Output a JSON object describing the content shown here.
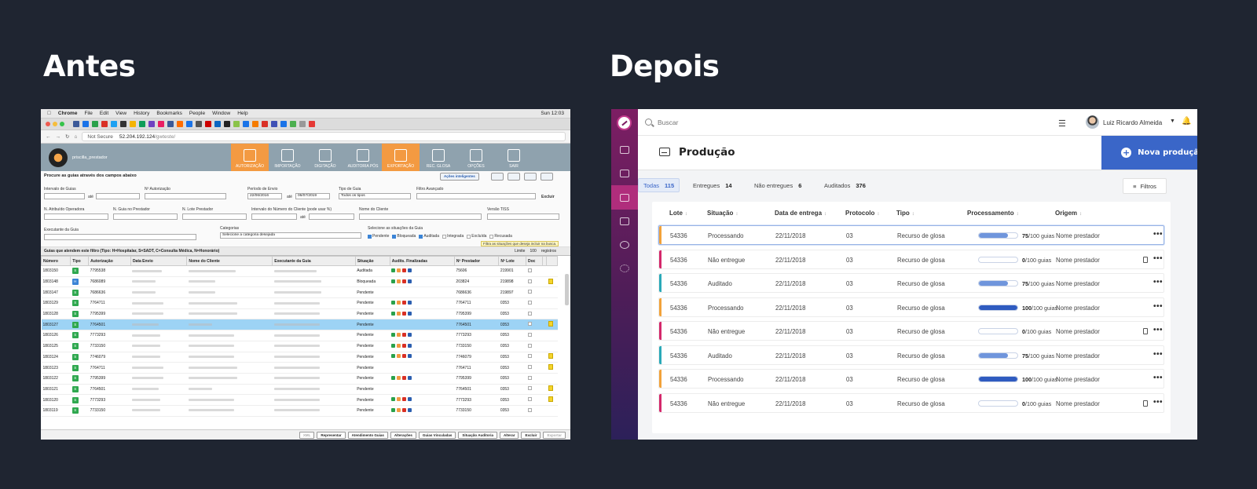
{
  "headings": {
    "before": "Antes",
    "after": "Depois"
  },
  "old": {
    "mac_menu": [
      "Chrome",
      "File",
      "Edit",
      "View",
      "History",
      "Bookmarks",
      "People",
      "Window",
      "Help"
    ],
    "clock": "Sun 12:03",
    "url": {
      "security": "Not Secure",
      "host": "52.204.192.124",
      "path": "/gwteste/"
    },
    "username": "priscilla_prestador",
    "modules": [
      {
        "label": "AUTORIZAÇÃO",
        "active": true
      },
      {
        "label": "IMPORTAÇÃO",
        "active": false
      },
      {
        "label": "DIGITAÇÃO",
        "active": false
      },
      {
        "label": "AUDITORIA PÓS",
        "active": false
      },
      {
        "label": "EXPORTAÇÃO",
        "active": true
      },
      {
        "label": "REC. GLOSA",
        "active": false
      },
      {
        "label": "OPÇÕES",
        "active": false
      },
      {
        "label": "SAIR",
        "active": false
      }
    ],
    "filters": {
      "title": "Procure as guias através dos campos abaixo",
      "acoes": "Ações inteligentes",
      "intervalo_guias": "Intervalo de Guias",
      "ate": "até",
      "n_autorizacao": "Nº Autorização",
      "periodo_envio": "Período de Envio",
      "date_from": "22/06/2016",
      "date_to": "06/07/2019",
      "tipo_guia": "Tipo de Guia",
      "tipo_guia_value": "Todos os tipos",
      "filtro_avancado": "Filtro Avançado",
      "excluir": "Excluir",
      "n_atribuido": "N. Atribuído Operadora",
      "n_guia_prestador": "N. Guia no Prestador",
      "n_lote_prestador": "N. Lote Prestador",
      "intervalo_cliente": "Intervalo do Número do Cliente (pode usar %)",
      "nome_cliente": "Nome do Cliente",
      "versao_tiss": "Versão TISS",
      "categorias": "Categorias",
      "categorias_value": "Selecione a categoria desejada",
      "executante": "Executante da Guia",
      "situacoes_label": "Selecione as situações da Guia",
      "situacoes": [
        "Pendente",
        "Bloqueada",
        "Auditada",
        "Integrada",
        "Excluída",
        "Recusada"
      ],
      "limite": "Limite",
      "limite_value": "100",
      "registros": "registros",
      "tooltip": "Filtra as situações que deseja incluir na busca."
    },
    "grid_title": "Guias que atendem este filtro (Tipo: H=Hospitalar, S=SADT, C=Consulta Médica, N=Honorário)",
    "columns": [
      "Número",
      "Tipo",
      "Autorização",
      "Data Envio",
      "Nome do Cliente",
      "Executante da Guia",
      "Situação",
      "Audits. Finalizadas",
      "Nº Prestador",
      "Nº Lote",
      "Doc"
    ],
    "rows": [
      {
        "numero": "1803150",
        "tipo": "S",
        "aut": "7795538",
        "situacao": "Auditada",
        "prest": "75606",
        "lote": "219901"
      },
      {
        "numero": "1803148",
        "tipo": "H",
        "aut": "7686089",
        "situacao": "Bloqueada",
        "prest": "203824",
        "lote": "219898"
      },
      {
        "numero": "1803147",
        "tipo": "S",
        "aut": "7686636",
        "situacao": "Pendente",
        "prest": "7686636",
        "lote": "219897"
      },
      {
        "numero": "1803129",
        "tipo": "S",
        "aut": "7764711",
        "situacao": "Pendente",
        "prest": "7764711",
        "lote": "0353"
      },
      {
        "numero": "1803128",
        "tipo": "S",
        "aut": "7795399",
        "situacao": "Pendente",
        "prest": "7795399",
        "lote": "0353"
      },
      {
        "numero": "1803127",
        "tipo": "S",
        "aut": "7764501",
        "situacao": "Pendente",
        "prest": "7764501",
        "lote": "0353"
      },
      {
        "numero": "1803126",
        "tipo": "S",
        "aut": "7773293",
        "situacao": "Pendente",
        "prest": "7773293",
        "lote": "0353"
      },
      {
        "numero": "1803125",
        "tipo": "S",
        "aut": "7733150",
        "situacao": "Pendente",
        "prest": "7733150",
        "lote": "0353"
      },
      {
        "numero": "1803124",
        "tipo": "S",
        "aut": "7746079",
        "situacao": "Pendente",
        "prest": "7746079",
        "lote": "0353"
      },
      {
        "numero": "1803123",
        "tipo": "S",
        "aut": "7764711",
        "situacao": "Pendente",
        "prest": "7764711",
        "lote": "0353"
      },
      {
        "numero": "1803122",
        "tipo": "S",
        "aut": "7795399",
        "situacao": "Pendente",
        "prest": "7795399",
        "lote": "0353"
      },
      {
        "numero": "1803121",
        "tipo": "S",
        "aut": "7764501",
        "situacao": "Pendente",
        "prest": "7764501",
        "lote": "0353"
      },
      {
        "numero": "1803120",
        "tipo": "S",
        "aut": "7773293",
        "situacao": "Pendente",
        "prest": "7773293",
        "lote": "0353"
      },
      {
        "numero": "1803119",
        "tipo": "S",
        "aut": "7733150",
        "situacao": "Pendente",
        "prest": "7733150",
        "lote": "0353"
      }
    ],
    "footer_buttons": [
      "XML",
      "Representar",
      "Atendimento Guias",
      "Alterações",
      "Guias Vinculadas",
      "Situação Auditoria",
      "Alterar",
      "Excluir",
      "Exportar"
    ]
  },
  "new": {
    "search_placeholder": "Buscar",
    "user_name": "Luiz Ricardo Almeida",
    "page_title": "Produção",
    "new_button": "Nova produção",
    "tabs": [
      {
        "label": "Todas",
        "count": "115",
        "active": true
      },
      {
        "label": "Entregues",
        "count": "14",
        "active": false
      },
      {
        "label": "Não entregues",
        "count": "6",
        "active": false
      },
      {
        "label": "Auditados",
        "count": "376",
        "active": false
      }
    ],
    "filters_button": "Filtros",
    "columns": [
      "Lote",
      "Situação",
      "Data de entrega",
      "Protocolo",
      "Tipo",
      "Processamento",
      "Origem"
    ],
    "colors": {
      "processando": "#f2a23a",
      "nao_entregue": "#d4286b",
      "auditado": "#2aa9b8",
      "progress": "#3a66c8"
    },
    "rows": [
      {
        "lote": "54336",
        "situacao": "Processando",
        "status": "processando",
        "data": "22/11/2018",
        "protocolo": "03",
        "tipo": "Recurso de glosa",
        "proc": "75",
        "proc_suffix": "/100 guias",
        "origem": "Nome prestador",
        "doc": false
      },
      {
        "lote": "54336",
        "situacao": "Não entregue",
        "status": "nao_entregue",
        "data": "22/11/2018",
        "protocolo": "03",
        "tipo": "Recurso de glosa",
        "proc": "0",
        "proc_suffix": "/100 guias",
        "origem": "Nome prestador",
        "doc": true
      },
      {
        "lote": "54336",
        "situacao": "Auditado",
        "status": "auditado",
        "data": "22/11/2018",
        "protocolo": "03",
        "tipo": "Recurso de glosa",
        "proc": "75",
        "proc_suffix": "/100 guias",
        "origem": "Nome prestador",
        "doc": false
      },
      {
        "lote": "54336",
        "situacao": "Processando",
        "status": "processando",
        "data": "22/11/2018",
        "protocolo": "03",
        "tipo": "Recurso de glosa",
        "proc": "100",
        "proc_suffix": "/100 guias",
        "origem": "Nome prestador",
        "doc": false
      },
      {
        "lote": "54336",
        "situacao": "Não entregue",
        "status": "nao_entregue",
        "data": "22/11/2018",
        "protocolo": "03",
        "tipo": "Recurso de glosa",
        "proc": "0",
        "proc_suffix": "/100 guias",
        "origem": "Nome prestador",
        "doc": true
      },
      {
        "lote": "54336",
        "situacao": "Auditado",
        "status": "auditado",
        "data": "22/11/2018",
        "protocolo": "03",
        "tipo": "Recurso de glosa",
        "proc": "75",
        "proc_suffix": "/100 guias",
        "origem": "Nome prestador",
        "doc": false
      },
      {
        "lote": "54336",
        "situacao": "Processando",
        "status": "processando",
        "data": "22/11/2018",
        "protocolo": "03",
        "tipo": "Recurso de glosa",
        "proc": "100",
        "proc_suffix": "/100 guias",
        "origem": "Nome prestador",
        "doc": false
      },
      {
        "lote": "54336",
        "situacao": "Não entregue",
        "status": "nao_entregue",
        "data": "22/11/2018",
        "protocolo": "03",
        "tipo": "Recurso de glosa",
        "proc": "0",
        "proc_suffix": "/100 guias",
        "origem": "Nome prestador",
        "doc": true
      }
    ]
  }
}
